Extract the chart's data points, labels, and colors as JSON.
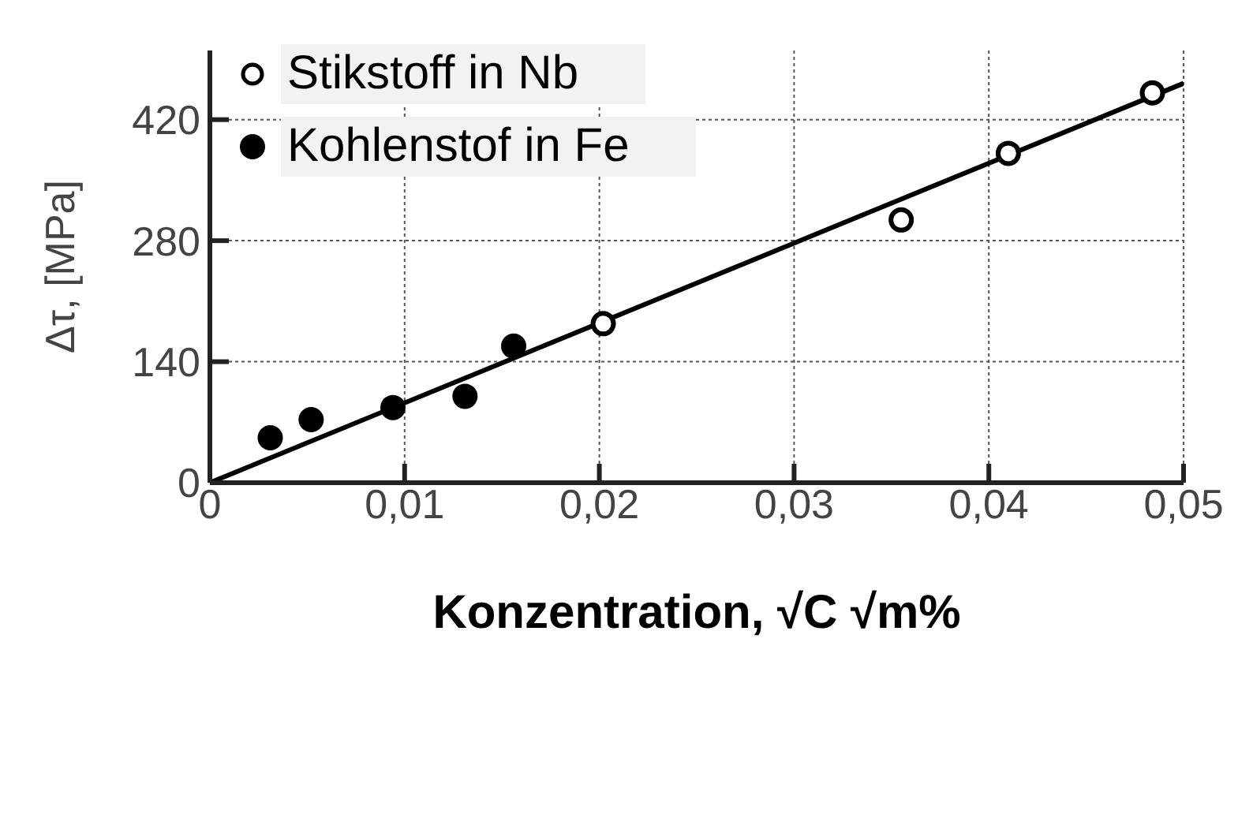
{
  "chart_data": {
    "type": "scatter",
    "xlabel": "Konzentration, √C √m%",
    "ylabel": "Δτ, [MPa]",
    "xlim": [
      0,
      0.05
    ],
    "xticks": [
      {
        "value": 0,
        "label": "0"
      },
      {
        "value": 0.01,
        "label": "0,01"
      },
      {
        "value": 0.02,
        "label": "0,02"
      },
      {
        "value": 0.03,
        "label": "0,03"
      },
      {
        "value": 0.04,
        "label": "0,04"
      },
      {
        "value": 0.05,
        "label": "0,05"
      }
    ],
    "ylim": [
      0,
      500
    ],
    "yticks": [
      0,
      140,
      280,
      420
    ],
    "grid": true,
    "legend": "top left",
    "marker": "circle",
    "series": [
      {
        "name": "Stikstoff in Nb",
        "color": "#000000",
        "x": [
          0.0202,
          0.0355,
          0.041,
          0.0484
        ],
        "values": [
          184,
          304,
          381,
          451
        ]
      },
      {
        "name": "Kohlenstof in Fe",
        "color": "#000000",
        "x": [
          0.0031,
          0.0052,
          0.0094,
          0.0131,
          0.0156
        ],
        "values": [
          52,
          73,
          87,
          100,
          158
        ]
      },
      {
        "type": "line",
        "color": "#000000",
        "marker": "none",
        "x": [
          0,
          0.05
        ],
        "values": [
          0,
          462
        ]
      }
    ]
  }
}
